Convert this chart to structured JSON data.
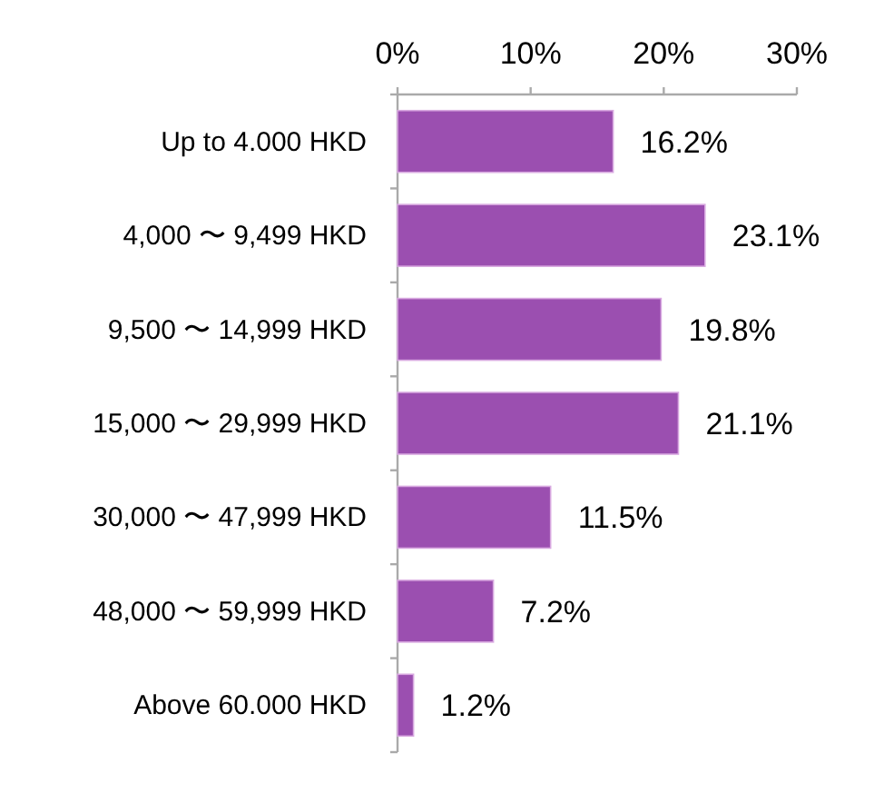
{
  "chart_data": {
    "type": "bar",
    "orientation": "horizontal",
    "categories": [
      "Up to 4.000 HKD",
      "4,000 〜 9,499 HKD",
      "9,500 〜 14,999 HKD",
      "15,000 〜 29,999 HKD",
      "30,000 〜 47,999 HKD",
      "48,000 〜 59,999 HKD",
      "Above 60.000 HKD"
    ],
    "values": [
      16.2,
      23.1,
      19.8,
      21.1,
      11.5,
      7.2,
      1.2
    ],
    "value_labels": [
      "16.2%",
      "23.1%",
      "19.8%",
      "21.1%",
      "11.5%",
      "7.2%",
      "1.2%"
    ],
    "color": "#9b4fb0",
    "xlim": [
      0,
      30
    ],
    "xticks": [
      {
        "value": 0,
        "label": "0%"
      },
      {
        "value": 10,
        "label": "10%"
      },
      {
        "value": 20,
        "label": "20%"
      },
      {
        "value": 30,
        "label": "30%"
      }
    ],
    "grid": false
  }
}
